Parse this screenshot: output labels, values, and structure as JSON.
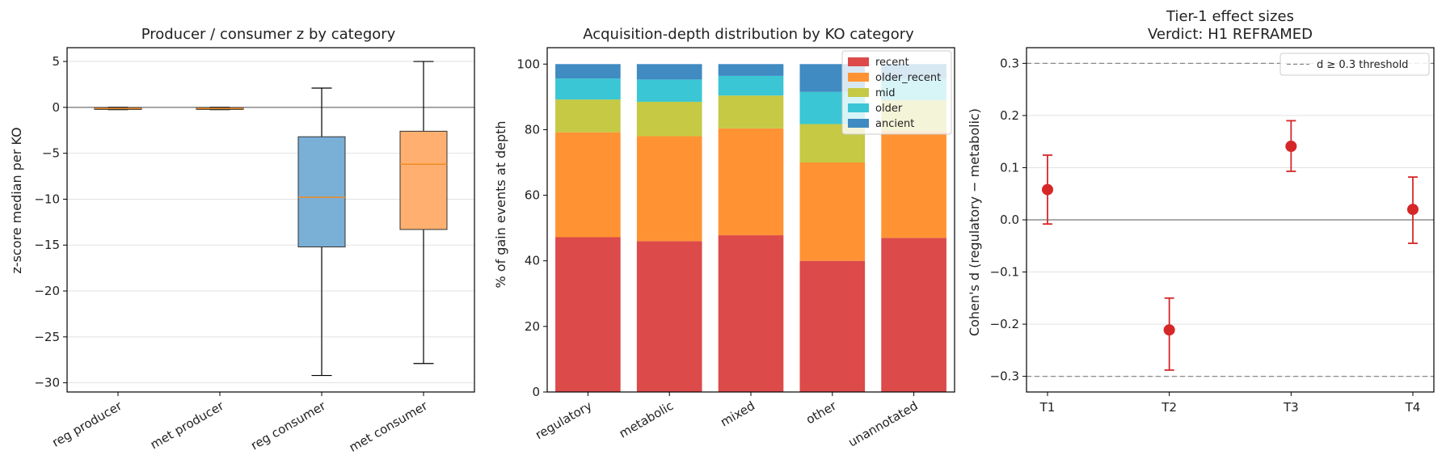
{
  "colors": {
    "reg_box": "#7aafd6",
    "met_box": "#ffb070",
    "median": "#f08a24",
    "recent": "#dc4a4a",
    "older_recent": "#ff9333",
    "mid": "#c5c944",
    "older": "#3ac6d4",
    "ancient": "#3f8bc2",
    "effect": "#d62728",
    "threshold": "#888888"
  },
  "chart_data": [
    {
      "type": "box",
      "title": "Producer / consumer z by category",
      "ylabel": "z-score median per KO",
      "ylim": [
        -31,
        6.5
      ],
      "yticks": [
        5,
        0,
        -5,
        -10,
        -15,
        -20,
        -25,
        -30
      ],
      "ytick_labels": [
        "5",
        "0",
        "−5",
        "−10",
        "−15",
        "−20",
        "−25",
        "−30"
      ],
      "categories": [
        "reg producer",
        "met producer",
        "reg consumer",
        "met consumer"
      ],
      "boxes": [
        {
          "whisker_low": -0.25,
          "q1": -0.2,
          "median": -0.12,
          "q3": -0.05,
          "whisker_high": 0.0,
          "fill": "reg"
        },
        {
          "whisker_low": -0.25,
          "q1": -0.2,
          "median": -0.12,
          "q3": -0.05,
          "whisker_high": 0.0,
          "fill": "met"
        },
        {
          "whisker_low": -29.2,
          "q1": -15.2,
          "median": -9.8,
          "q3": -3.2,
          "whisker_high": 2.1,
          "fill": "reg"
        },
        {
          "whisker_low": -27.9,
          "q1": -13.3,
          "median": -6.2,
          "q3": -2.6,
          "whisker_high": 5.0,
          "fill": "met"
        }
      ],
      "zero_line": 0
    },
    {
      "type": "bar",
      "stacked": true,
      "title": "Acquisition-depth distribution by KO category",
      "ylabel": "% of gain events at depth",
      "ylim": [
        0,
        105
      ],
      "yticks": [
        0,
        20,
        40,
        60,
        80,
        100
      ],
      "categories": [
        "regulatory",
        "metabolic",
        "mixed",
        "other",
        "unannotated"
      ],
      "series": [
        {
          "name": "recent",
          "key": "recent",
          "values": [
            47.2,
            46.0,
            47.8,
            40.0,
            47.0
          ]
        },
        {
          "name": "older_recent",
          "key": "older_recent",
          "values": [
            32.0,
            32.0,
            32.6,
            30.0,
            32.5
          ]
        },
        {
          "name": "mid",
          "key": "mid",
          "values": [
            10.0,
            10.5,
            10.0,
            11.7,
            9.5
          ]
        },
        {
          "name": "older",
          "key": "older",
          "values": [
            6.4,
            6.8,
            6.0,
            9.8,
            6.5
          ]
        },
        {
          "name": "ancient",
          "key": "ancient",
          "values": [
            4.4,
            4.7,
            3.6,
            8.5,
            4.5
          ]
        }
      ],
      "legend_position": "top-right"
    },
    {
      "type": "errorbar",
      "title": "Tier-1 effect sizes",
      "subtitle": "Verdict: H1 REFRAMED",
      "ylabel": "Cohen's d (regulatory − metabolic)",
      "ylim": [
        -0.33,
        0.33
      ],
      "yticks": [
        0.3,
        0.2,
        0.1,
        0.0,
        -0.1,
        -0.2,
        -0.3
      ],
      "ytick_labels": [
        "0.3",
        "0.2",
        "0.1",
        "0.0",
        "−0.1",
        "−0.2",
        "−0.3"
      ],
      "categories": [
        "T1",
        "T2",
        "T3",
        "T4"
      ],
      "points": [
        {
          "d": 0.058,
          "low": -0.008,
          "high": 0.124
        },
        {
          "d": -0.211,
          "low": -0.288,
          "high": -0.15
        },
        {
          "d": 0.141,
          "low": 0.093,
          "high": 0.19
        },
        {
          "d": 0.02,
          "low": -0.045,
          "high": 0.082
        }
      ],
      "threshold": 0.3,
      "threshold_label": "d ≥ 0.3 threshold",
      "legend_position": "top-right"
    }
  ]
}
